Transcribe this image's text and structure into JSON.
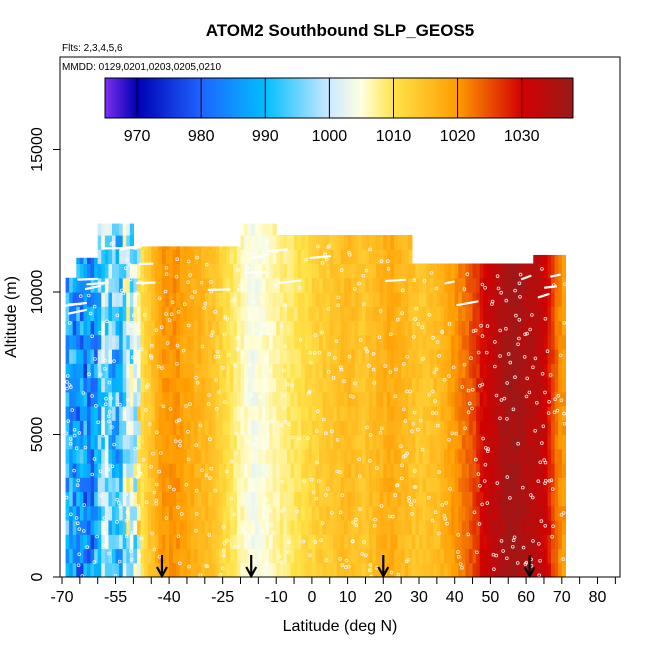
{
  "chart_data": {
    "type": "heatmap",
    "title": "ATOM2 Southbound SLP_GEOS5",
    "flights_label": "Flts: 2,3,4,5,6",
    "dates_label": "MMDD: 0129,0201,0203,0205,0210",
    "xlabel": "Latitude (deg N)",
    "ylabel": "Altitude (m)",
    "xlim": [
      -70,
      85
    ],
    "ylim": [
      0,
      17500
    ],
    "x_ticks": [
      -70,
      -55,
      -40,
      -25,
      -10,
      0,
      10,
      20,
      30,
      40,
      50,
      60,
      70,
      80
    ],
    "x_minor_ticks": [
      -65,
      -60,
      -50,
      -45,
      -35,
      -30,
      -20,
      -15,
      -5,
      5,
      15,
      25,
      35,
      45,
      55,
      65,
      75,
      85
    ],
    "y_ticks": [
      0,
      5000,
      10000,
      15000
    ],
    "colorbar": {
      "variable": "SLP",
      "min": 965,
      "max": 1038,
      "ticks": [
        970,
        980,
        990,
        1000,
        1010,
        1020,
        1030
      ],
      "stops": [
        {
          "value": 965,
          "color": "#7b2ff0"
        },
        {
          "value": 970,
          "color": "#0000b4"
        },
        {
          "value": 980,
          "color": "#1e64ff"
        },
        {
          "value": 990,
          "color": "#00beff"
        },
        {
          "value": 1000,
          "color": "#cde9ff"
        },
        {
          "value": 1005,
          "color": "#ffffe0"
        },
        {
          "value": 1010,
          "color": "#ffe44a"
        },
        {
          "value": 1020,
          "color": "#ff9c00"
        },
        {
          "value": 1030,
          "color": "#d40000"
        },
        {
          "value": 1038,
          "color": "#9a1a1a"
        }
      ]
    },
    "slp_profile": {
      "lat": [
        -69,
        -66,
        -62,
        -60,
        -58,
        -56,
        -54,
        -52,
        -50,
        -48,
        -46,
        -44,
        -42,
        -40,
        -38,
        -36,
        -34,
        -32,
        -30,
        -28,
        -26,
        -24,
        -22,
        -20,
        -18,
        -16,
        -14,
        -12,
        -10,
        -8,
        -6,
        -4,
        -2,
        0,
        2,
        4,
        6,
        8,
        10,
        12,
        14,
        16,
        18,
        20,
        22,
        24,
        26,
        28,
        30,
        32,
        34,
        36,
        38,
        40,
        42,
        44,
        46,
        48,
        50,
        52,
        54,
        56,
        58,
        60,
        62,
        64,
        66,
        68,
        70
      ],
      "slp": [
        988,
        986,
        984,
        988,
        1000,
        992,
        990,
        1003,
        997,
        1010,
        1013,
        1016,
        1020,
        1020,
        1021,
        1019,
        1018,
        1017,
        1016,
        1015,
        1013,
        1011,
        1009,
        1007,
        1005,
        1004,
        1005,
        1006,
        1007,
        1008,
        1009,
        1010,
        1011,
        1012,
        1013,
        1014,
        1014,
        1015,
        1016,
        1015,
        1014,
        1015,
        1016,
        1017,
        1018,
        1017,
        1016,
        1015,
        1014,
        1014,
        1015,
        1016,
        1018,
        1020,
        1022,
        1024,
        1026,
        1030,
        1032,
        1034,
        1036,
        1037,
        1036,
        1035,
        1034,
        1033,
        1030,
        1024,
        1020
      ]
    },
    "data_extent": {
      "lat": [
        -69,
        71
      ],
      "alt": [
        0,
        12500
      ]
    },
    "flight_tops": [
      {
        "lat_start": -69,
        "lat_end": -66,
        "alt": 10500
      },
      {
        "lat_start": -66,
        "lat_end": -60,
        "alt": 11200
      },
      {
        "lat_start": -60,
        "lat_end": -50,
        "alt": 12400
      },
      {
        "lat_start": -50,
        "lat_end": -20,
        "alt": 11600
      },
      {
        "lat_start": -20,
        "lat_end": -10,
        "alt": 12400
      },
      {
        "lat_start": -10,
        "lat_end": 28,
        "alt": 12000
      },
      {
        "lat_start": 28,
        "lat_end": 62,
        "alt": 11000
      },
      {
        "lat_start": 62,
        "lat_end": 71,
        "alt": 11300
      }
    ],
    "arrows_lat": [
      -42,
      -17,
      20,
      61
    ]
  }
}
